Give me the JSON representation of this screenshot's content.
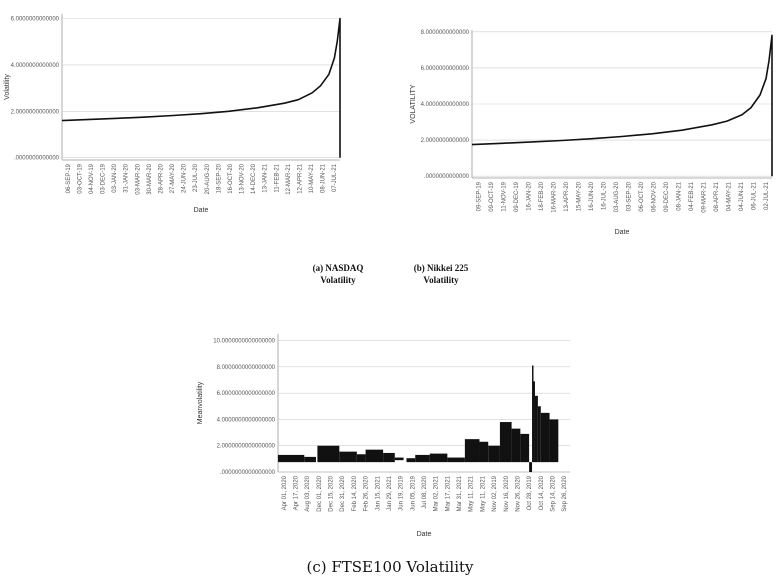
{
  "captions": {
    "a_line1": "(a) NASDAQ",
    "a_line2": "Volatility",
    "b_line1": "(b) Nikkei 225",
    "b_line2": "Volatility",
    "c": "(c) FTSE100 Volatility"
  },
  "chart_data": [
    {
      "type": "line",
      "xlabel": "Date",
      "ylabel": "Volatility",
      "y_tick_labels": [
        ".0000000000000",
        "2.0000000000000",
        "4.0000000000000",
        "6.0000000000000"
      ],
      "y_tick_values": [
        0,
        2,
        4,
        6
      ],
      "ylim": [
        -0.1,
        6.2
      ],
      "grid": true,
      "x_tick_labels": [
        "06-SEP-19",
        "03-OCT-19",
        "04-NOV-19",
        "03-DEC-19",
        "03-JAN-20",
        "31-JAN-20",
        "03-MAR-20",
        "30-MAR-20",
        "28-APR-20",
        "27-MAY-20",
        "24-JUN-20",
        "23-JUL-20",
        "20-AUG-20",
        "18-SEP-20",
        "16-OCT-20",
        "13-NOV-20",
        "14-DEC-20",
        "13-JAN-21",
        "11-FEB-21",
        "12-MAR-21",
        "12-APR-21",
        "10-MAY-21",
        "08-JUN-21",
        "07-JUL-21"
      ],
      "series": [
        {
          "x": [
            0,
            0.1,
            0.2,
            0.3,
            0.4,
            0.5,
            0.6,
            0.7,
            0.8,
            0.85,
            0.9,
            0.93,
            0.96,
            0.98,
            0.99,
            1.0,
            1.0
          ],
          "y": [
            1.6,
            1.65,
            1.7,
            1.75,
            1.82,
            1.9,
            2.0,
            2.15,
            2.35,
            2.5,
            2.8,
            3.1,
            3.6,
            4.3,
            5.0,
            6.0,
            0.0
          ]
        }
      ]
    },
    {
      "type": "line",
      "xlabel": "Date",
      "ylabel": "VOLATILITY",
      "y_tick_labels": [
        ".0000000000000",
        "2.0000000000000",
        "4.0000000000000",
        "6.0000000000000",
        "8.0000000000000"
      ],
      "y_tick_values": [
        0,
        2,
        4,
        6,
        8
      ],
      "ylim": [
        -0.1,
        8.1
      ],
      "grid": true,
      "x_tick_labels": [
        "09-SEP-19",
        "09-OCT-19",
        "11-NOV-19",
        "09-DEC-19",
        "16-JAN-20",
        "18-FEB-20",
        "16-MAR-20",
        "13-APR-20",
        "15-MAY-20",
        "16-JUN-20",
        "16-JUL-20",
        "03-AUG-20",
        "03-SEP-20",
        "06-OCT-20",
        "06-NOV-20",
        "09-DEC-20",
        "08-JAN-21",
        "04-FEB-21",
        "09-MAR-21",
        "08-APR-21",
        "04-MAY-21",
        "04-JUN-21",
        "06-JUL-21",
        "02-JUL-21"
      ],
      "series": [
        {
          "x": [
            0,
            0.1,
            0.2,
            0.3,
            0.4,
            0.5,
            0.6,
            0.7,
            0.8,
            0.85,
            0.9,
            0.93,
            0.96,
            0.98,
            0.99,
            1.0,
            1.0
          ],
          "y": [
            1.75,
            1.82,
            1.9,
            1.98,
            2.08,
            2.2,
            2.35,
            2.55,
            2.85,
            3.05,
            3.4,
            3.8,
            4.5,
            5.4,
            6.4,
            7.8,
            0.0
          ]
        }
      ]
    },
    {
      "type": "bar",
      "xlabel": "Date",
      "ylabel": "Meanvolatility",
      "y_tick_labels": [
        ".0000000000000000",
        "2.0000000000000000",
        "4.0000000000000000",
        "6.0000000000000000",
        "8.0000000000000000",
        "10.0000000000000000"
      ],
      "y_tick_values": [
        0,
        2,
        4,
        6,
        8,
        10
      ],
      "ylim": [
        0,
        10.5
      ],
      "grid": true,
      "x_tick_labels": [
        "Apr 01, 2020",
        "Apr 17, 2020",
        "Aug 03, 2020",
        "Dec 01, 2020",
        "Dec 15, 2020",
        "Dec 31, 2020",
        "Feb 14, 2020",
        "Feb 26, 2020",
        "Jan 15, 2021",
        "Jan 29, 2021",
        "Jun 19, 2019",
        "Jun 05, 2019",
        "Jul 08, 2020",
        "Mar 02, 2021",
        "Mar 17, 2021",
        "Mar 31, 2021",
        "May 11, 2021",
        "May 11, 2021",
        "Nov 02, 2019",
        "Nov 16, 2020",
        "Nov 26, 2020",
        "Oct 28, 2019",
        "Oct 14, 2020",
        "Sep 14, 2020",
        "Sep 26, 2020"
      ],
      "series": [
        {
          "segments": [
            {
              "x0": 0.0,
              "x1": 0.09,
              "low": 0.75,
              "high": 1.3
            },
            {
              "x0": 0.09,
              "x1": 0.13,
              "low": 0.75,
              "high": 1.15
            },
            {
              "x0": 0.135,
              "x1": 0.21,
              "low": 0.75,
              "high": 2.0
            },
            {
              "x0": 0.21,
              "x1": 0.27,
              "low": 0.75,
              "high": 1.55
            },
            {
              "x0": 0.27,
              "x1": 0.3,
              "low": 0.75,
              "high": 1.35
            },
            {
              "x0": 0.3,
              "x1": 0.36,
              "low": 0.75,
              "high": 1.7
            },
            {
              "x0": 0.36,
              "x1": 0.4,
              "low": 0.75,
              "high": 1.45
            },
            {
              "x0": 0.4,
              "x1": 0.43,
              "low": 0.9,
              "high": 1.1
            },
            {
              "x0": 0.44,
              "x1": 0.47,
              "low": 0.75,
              "high": 1.05
            },
            {
              "x0": 0.47,
              "x1": 0.52,
              "low": 0.75,
              "high": 1.3
            },
            {
              "x0": 0.52,
              "x1": 0.58,
              "low": 0.75,
              "high": 1.4
            },
            {
              "x0": 0.58,
              "x1": 0.64,
              "low": 0.75,
              "high": 1.1
            },
            {
              "x0": 0.64,
              "x1": 0.69,
              "low": 0.75,
              "high": 2.5
            },
            {
              "x0": 0.69,
              "x1": 0.72,
              "low": 0.75,
              "high": 2.3
            },
            {
              "x0": 0.72,
              "x1": 0.76,
              "low": 0.75,
              "high": 2.0
            },
            {
              "x0": 0.76,
              "x1": 0.8,
              "low": 0.75,
              "high": 3.8
            },
            {
              "x0": 0.8,
              "x1": 0.83,
              "low": 0.75,
              "high": 3.3
            },
            {
              "x0": 0.83,
              "x1": 0.86,
              "low": 0.75,
              "high": 2.9
            },
            {
              "x0": 0.86,
              "x1": 0.87,
              "low": 0.0,
              "high": 0.75
            },
            {
              "x0": 0.87,
              "x1": 0.875,
              "low": 0.75,
              "high": 8.1
            },
            {
              "x0": 0.875,
              "x1": 0.88,
              "low": 0.75,
              "high": 6.9
            },
            {
              "x0": 0.88,
              "x1": 0.89,
              "low": 0.75,
              "high": 5.8
            },
            {
              "x0": 0.89,
              "x1": 0.9,
              "low": 0.75,
              "high": 5.0
            },
            {
              "x0": 0.9,
              "x1": 0.93,
              "low": 0.75,
              "high": 4.5
            },
            {
              "x0": 0.93,
              "x1": 0.96,
              "low": 0.75,
              "high": 4.0
            }
          ]
        }
      ]
    }
  ]
}
